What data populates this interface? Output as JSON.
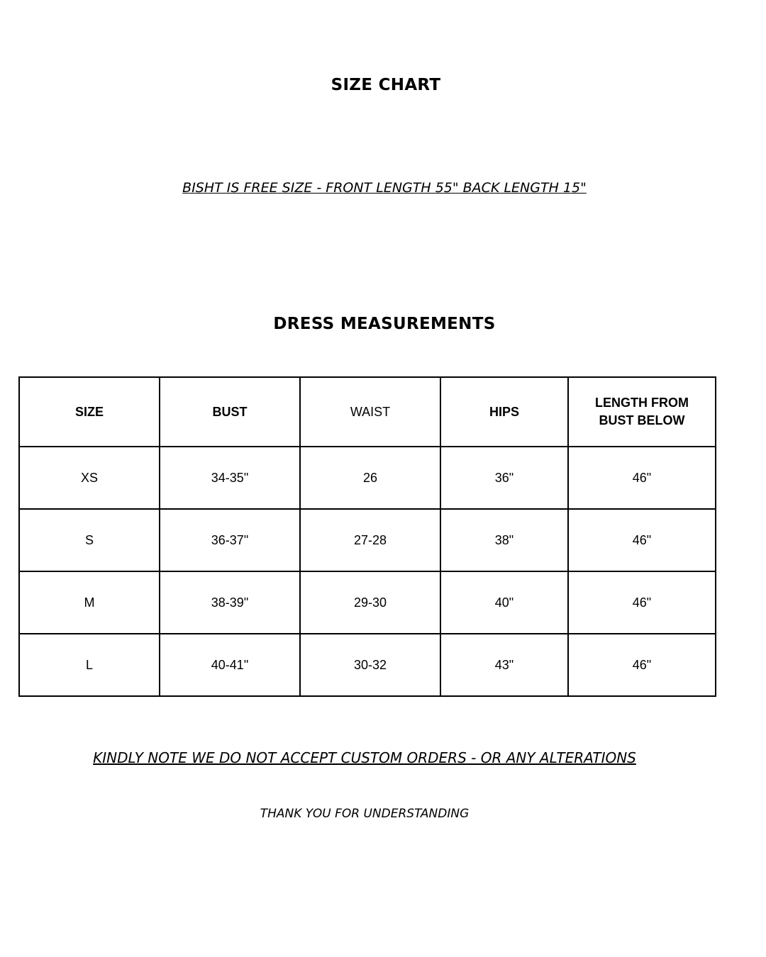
{
  "title": "SIZE CHART",
  "bisht_note": "BISHT IS FREE SIZE -  FRONT LENGTH 55\" BACK LENGTH 15\"",
  "section_title": "DRESS MEASUREMENTS",
  "table": {
    "headers": [
      "SIZE",
      "BUST",
      "WAIST",
      "HIPS",
      "LENGTH FROM BUST BELOW"
    ],
    "rows": [
      [
        "XS",
        "34-35\"",
        "26",
        "36\"",
        "46\""
      ],
      [
        "S",
        "36-37\"",
        "27-28",
        "38\"",
        "46\""
      ],
      [
        "M",
        "38-39\"",
        "29-30",
        "40\"",
        "46\""
      ],
      [
        "L",
        "40-41\"",
        "30-32",
        "43\"",
        "46\""
      ]
    ]
  },
  "custom_note": "KINDLY NOTE WE DO NOT ACCEPT CUSTOM ORDERS - OR ANY ALTERATIONS",
  "thanks": "THANK YOU FOR UNDERSTANDING"
}
